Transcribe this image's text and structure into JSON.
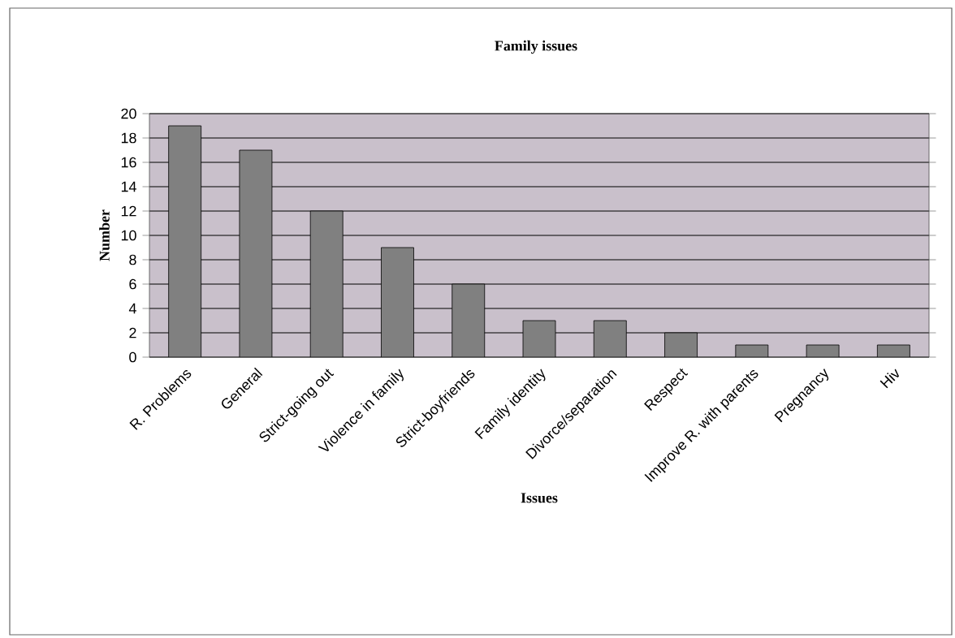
{
  "chart_data": {
    "type": "bar",
    "title": "Family issues",
    "xlabel": "Issues",
    "ylabel": "Number",
    "categories": [
      "R. Problems",
      "General",
      "Strict-going out",
      "Violence in family",
      "Strict-boyfriends",
      "Family identity",
      "Divorce/separation",
      "Respect",
      "Improve R. with parents",
      "Pregnancy",
      "Hiv"
    ],
    "values": [
      19,
      17,
      12,
      9,
      6,
      3,
      3,
      2,
      1,
      1,
      1
    ],
    "color": "#808080",
    "ylim": [
      0,
      20
    ],
    "yticks": [
      0,
      2,
      4,
      6,
      8,
      10,
      12,
      14,
      16,
      18,
      20
    ],
    "grid": "y"
  }
}
